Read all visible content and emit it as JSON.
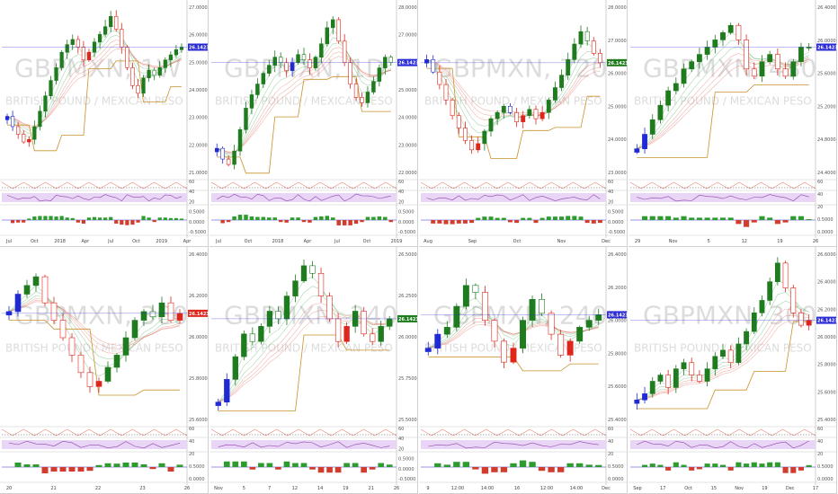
{
  "watermark_symbol": "GBPMXN",
  "watermark_desc": "BRITISH POUND / MEXICAN PESO",
  "colors": {
    "up": "#1e7b1e",
    "down": "#e0251b",
    "neutral": "#1f2ad4",
    "ema_fast": "#3fa34d",
    "ema_slow": "#e05a4a",
    "channel": "#c8912a",
    "price_line": "#2b2bd6",
    "rsi_band": "#e9d5f5",
    "rsi_line": "#8e44ad",
    "hist_up": "#2d9b2d",
    "hist_down": "#d23c2c"
  },
  "chart_data": [
    {
      "type": "candlestick",
      "interval_label": "1W",
      "price_label": "26.1423",
      "price_highlight": "blue",
      "y_ticks": [
        "27.0000",
        "26.0000",
        "25.0000",
        "24.0000",
        "23.0000",
        "22.0000",
        "21.0000"
      ],
      "ylim": [
        21.0,
        27.8
      ],
      "x_ticks": [
        "Jul",
        "Oct",
        "2018",
        "Apr",
        "Jul",
        "Oct",
        "2019",
        "Apr"
      ],
      "indicator_ticks": [
        "60",
        "40",
        "20",
        "0.5000",
        "0.0000",
        "-0.5000"
      ],
      "close": [
        23.4,
        23.0,
        22.7,
        22.4,
        22.5,
        23.0,
        23.6,
        24.2,
        24.8,
        25.3,
        25.9,
        26.2,
        26.4,
        26.1,
        25.6,
        25.9,
        26.3,
        26.6,
        26.9,
        27.3,
        26.8,
        26.1,
        25.3,
        24.6,
        24.3,
        24.9,
        25.2,
        25.0,
        25.3,
        25.6,
        25.8,
        26.0,
        26.1
      ]
    },
    {
      "type": "candlestick",
      "interval_label": "1D",
      "price_label": "26.1423",
      "price_highlight": "blue",
      "y_ticks": [
        "28.0000",
        "27.0000",
        "26.0000",
        "25.0000",
        "24.0000",
        "23.0000",
        "22.0000"
      ],
      "ylim": [
        21.8,
        28.3
      ],
      "x_ticks": [
        "Jul",
        "Oct",
        "2018",
        "Apr",
        "Jul",
        "Oct",
        "2019"
      ],
      "indicator_ticks": [
        "60",
        "40",
        "20",
        "0.5000",
        "0.0000",
        "-0.5000"
      ],
      "close": [
        22.9,
        22.5,
        22.3,
        22.8,
        23.6,
        24.4,
        24.9,
        25.3,
        25.7,
        26.0,
        26.3,
        26.1,
        25.8,
        26.1,
        26.4,
        26.2,
        25.9,
        26.3,
        26.8,
        27.4,
        27.7,
        26.9,
        26.1,
        25.3,
        24.8,
        24.6,
        25.0,
        25.4,
        25.9,
        26.3,
        26.1
      ]
    },
    {
      "type": "candlestick",
      "interval_label": "720",
      "price_label": "26.1423",
      "price_highlight": "green",
      "y_ticks": [
        "28.0000",
        "27.0000",
        "26.0000",
        "25.0000",
        "24.0000",
        "23.0000"
      ],
      "ylim": [
        22.8,
        28.4
      ],
      "x_ticks": [
        "Aug",
        "Sep",
        "Oct",
        "Nov",
        "Dec"
      ],
      "indicator_ticks": [
        "60",
        "40",
        "20",
        "0.5000",
        "0.0000",
        "-0.5000"
      ],
      "close": [
        26.6,
        26.2,
        25.8,
        25.3,
        24.8,
        24.4,
        24.0,
        23.7,
        23.9,
        24.3,
        24.7,
        24.9,
        25.1,
        24.9,
        24.6,
        24.8,
        25.0,
        24.7,
        24.9,
        25.3,
        25.7,
        26.1,
        26.6,
        27.1,
        27.5,
        27.2,
        26.8,
        26.5
      ]
    },
    {
      "type": "candlestick",
      "interval_label": "480",
      "price_label": "26.1423",
      "price_highlight": "blue",
      "y_ticks": [
        "26.4000",
        "26.0000",
        "25.6000",
        "25.2000",
        "24.8000",
        "24.4000"
      ],
      "ylim": [
        24.3,
        26.7
      ],
      "x_ticks": [
        "29",
        "Nov",
        "5",
        "12",
        "19",
        "26"
      ],
      "indicator_ticks": [
        "60",
        "40",
        "20",
        "0.5000",
        "0.0000"
      ],
      "close": [
        24.7,
        24.9,
        25.1,
        25.3,
        25.5,
        25.6,
        25.8,
        25.9,
        26.0,
        26.1,
        26.2,
        26.3,
        26.4,
        26.2,
        25.8,
        25.7,
        25.9,
        26.0,
        25.8,
        25.7,
        25.9,
        26.1,
        26.1
      ]
    },
    {
      "type": "candlestick",
      "interval_label": "360",
      "price_label": "26.1423",
      "price_highlight": "red",
      "y_ticks": [
        "26.4000",
        "26.2000",
        "26.0000",
        "25.8000",
        "25.6000"
      ],
      "ylim": [
        25.5,
        26.5
      ],
      "x_ticks": [
        "20",
        "21",
        "22",
        "23",
        "26"
      ],
      "indicator_ticks": [
        "60",
        "40",
        "20",
        "0.5000",
        "0.0000"
      ],
      "close": [
        26.15,
        26.25,
        26.3,
        26.35,
        26.2,
        26.1,
        26.0,
        25.9,
        25.8,
        25.72,
        25.75,
        25.83,
        25.9,
        26.0,
        26.1,
        26.15,
        26.12,
        26.2,
        26.1,
        26.14
      ]
    },
    {
      "type": "candlestick",
      "interval_label": "240",
      "price_label": "26.1423",
      "price_highlight": "green",
      "y_ticks": [
        "26.5000",
        "26.2500",
        "26.0000",
        "25.7500",
        "25.5000"
      ],
      "ylim": [
        25.45,
        26.6
      ],
      "x_ticks": [
        "Nov",
        "5",
        "7",
        "12",
        "14",
        "19",
        "21",
        "26"
      ],
      "indicator_ticks": [
        "60",
        "40",
        "20",
        "0.5000",
        "0.0000",
        "-0.5000"
      ],
      "close": [
        25.6,
        25.75,
        25.9,
        26.05,
        26.0,
        26.1,
        26.2,
        26.15,
        26.3,
        26.4,
        26.5,
        26.45,
        26.3,
        26.15,
        26.0,
        26.1,
        26.2,
        26.05,
        26.0,
        26.1,
        26.15
      ]
    },
    {
      "type": "candlestick",
      "interval_label": "240",
      "price_label": "26.1423",
      "price_highlight": "blue",
      "y_ticks": [
        "26.4000",
        "26.2000",
        "26.0000",
        "25.8000",
        "25.6000",
        "25.4000"
      ],
      "ylim": [
        25.35,
        26.6
      ],
      "x_ticks": [
        "9",
        "12:00",
        "14:00",
        "16",
        "12:00",
        "14:00",
        "Dec"
      ],
      "indicator_ticks": [
        "60",
        "40",
        "20",
        "0.5000",
        "0.0000"
      ],
      "close": [
        25.9,
        26.0,
        26.05,
        26.2,
        26.35,
        26.3,
        26.1,
        25.95,
        25.8,
        25.9,
        26.1,
        26.25,
        26.15,
        26.0,
        25.85,
        25.95,
        26.05,
        26.1,
        26.14
      ]
    },
    {
      "type": "candlestick",
      "interval_label": "360",
      "price_label": "26.1423",
      "price_highlight": "blue",
      "y_ticks": [
        "26.6000",
        "26.4000",
        "26.2000",
        "26.0000",
        "25.8000",
        "25.6000",
        "25.4000"
      ],
      "ylim": [
        25.3,
        26.7
      ],
      "x_ticks": [
        "Sep",
        "17",
        "Oct",
        "15",
        "Nov",
        "19",
        "Dec",
        "17"
      ],
      "indicator_ticks": [
        "60",
        "40",
        "20",
        "0.5000",
        "0.0000"
      ],
      "close": [
        25.5,
        25.55,
        25.65,
        25.7,
        25.6,
        25.75,
        25.8,
        25.7,
        25.65,
        25.75,
        25.85,
        25.9,
        25.8,
        25.95,
        26.05,
        26.2,
        26.3,
        26.45,
        26.6,
        26.4,
        26.2,
        26.1,
        26.14
      ]
    }
  ]
}
